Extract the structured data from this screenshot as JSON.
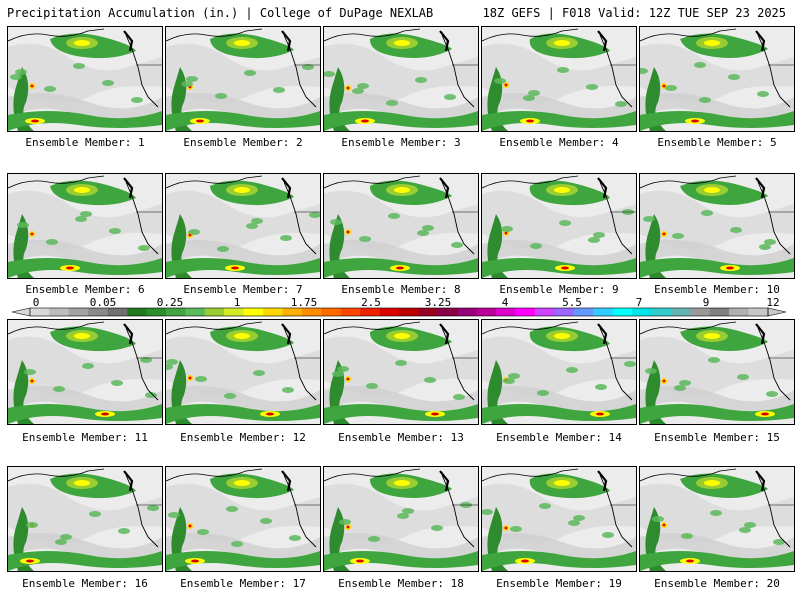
{
  "header": {
    "left_title": "Precipitation Accumulation (in.) | College of DuPage NEXLAB",
    "right_title": "18Z GEFS | F018 Valid: 12Z TUE SEP 23 2025"
  },
  "members": [
    "Ensemble Member: 1",
    "Ensemble Member: 2",
    "Ensemble Member: 3",
    "Ensemble Member: 4",
    "Ensemble Member: 5",
    "Ensemble Member: 6",
    "Ensemble Member: 7",
    "Ensemble Member: 8",
    "Ensemble Member: 9",
    "Ensemble Member: 10",
    "Ensemble Member: 11",
    "Ensemble Member: 12",
    "Ensemble Member: 13",
    "Ensemble Member: 14",
    "Ensemble Member: 15",
    "Ensemble Member: 16",
    "Ensemble Member: 17",
    "Ensemble Member: 18",
    "Ensemble Member: 19",
    "Ensemble Member: 20"
  ],
  "colorbar": {
    "tick_labels": [
      "0",
      "0.05",
      "0.25",
      "1",
      "1.75",
      "2.5",
      "3.25",
      "4",
      "5.5",
      "7",
      "9",
      "12"
    ],
    "colors": [
      "#d8d8d8",
      "#bdbdbd",
      "#a3a3a3",
      "#8a8a8a",
      "#707070",
      "#1f7a1f",
      "#2e8b2e",
      "#3fa53f",
      "#5cb85c",
      "#9acd32",
      "#d4ec28",
      "#ffff00",
      "#ffd700",
      "#ffb000",
      "#ff8c00",
      "#ff6a00",
      "#ff4500",
      "#ee2200",
      "#dd0000",
      "#bb0000",
      "#990022",
      "#880044",
      "#990077",
      "#bb0099",
      "#dd00cc",
      "#ff00ff",
      "#cc44ff",
      "#9966ff",
      "#6699ff",
      "#33ccff",
      "#00ffff",
      "#00e5e5",
      "#33cccc",
      "#66b3b3",
      "#999999",
      "#808080",
      "#b0b0b0",
      "#c8c8c8"
    ]
  }
}
